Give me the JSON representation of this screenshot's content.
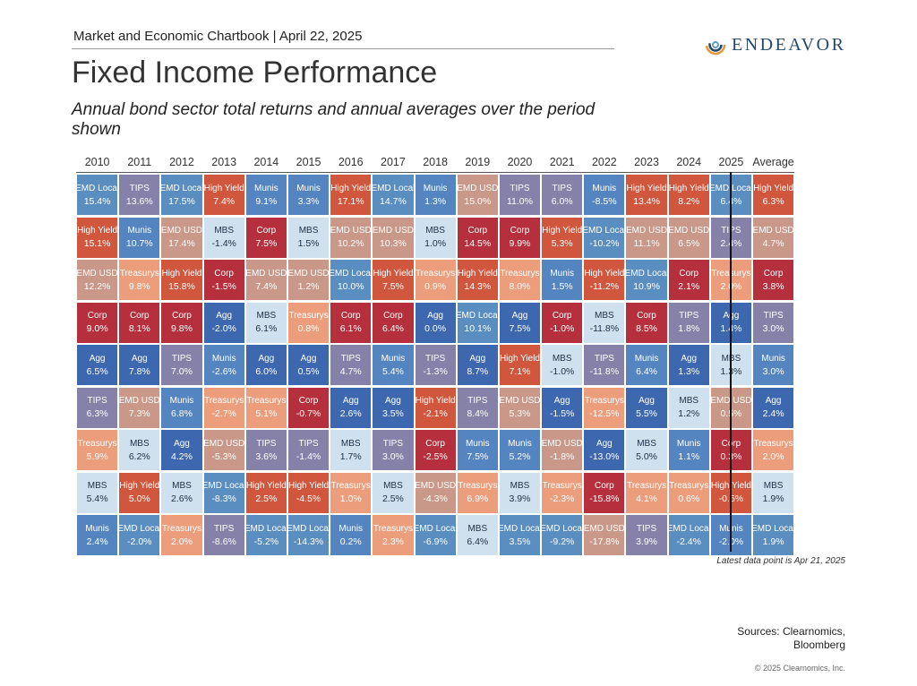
{
  "header": {
    "chartbook": "Market and Economic Chartbook | April 22, 2025",
    "logo_text": "ENDEAVOR",
    "logo_icon": "swirl-icon"
  },
  "title": "Fixed Income Performance",
  "subtitle": "Annual bond sector total returns and annual averages over the period shown",
  "footer": {
    "note": "Latest data point is Apr 21, 2025",
    "sources_line1": "Sources: Clearnomics,",
    "sources_line2": "Bloomberg",
    "copyright": "© 2025 Clearnomics, Inc."
  },
  "sector_colors": {
    "EMD Local": "#5a8ec0",
    "TIPS": "#8581a8",
    "High Yield": "#d0573e",
    "Munis": "#5585c0",
    "Corp": "#b5303c",
    "Agg": "#3d68b0",
    "EMD USD": "#c99888",
    "MBS": "#cfe0ef",
    "Treasurys": "#ec9e7c"
  },
  "chart_data": {
    "type": "table",
    "title": "Fixed Income Performance",
    "columns": [
      "2010",
      "2011",
      "2012",
      "2013",
      "2014",
      "2015",
      "2016",
      "2017",
      "2018",
      "2019",
      "2020",
      "2021",
      "2022",
      "2023",
      "2024",
      "2025",
      "Average"
    ],
    "columns_sectors": [
      [
        "EMD Local",
        "High Yield",
        "EMD USD",
        "Corp",
        "Agg",
        "TIPS",
        "Treasurys",
        "MBS",
        "Munis"
      ],
      [
        "TIPS",
        "Munis",
        "Treasurys",
        "Corp",
        "Agg",
        "EMD USD",
        "MBS",
        "High Yield",
        "EMD Local"
      ],
      [
        "EMD Local",
        "EMD USD",
        "High Yield",
        "Corp",
        "TIPS",
        "Munis",
        "Agg",
        "MBS",
        "Treasurys"
      ],
      [
        "High Yield",
        "MBS",
        "Corp",
        "Agg",
        "Munis",
        "Treasurys",
        "EMD USD",
        "EMD Local",
        "TIPS"
      ],
      [
        "Munis",
        "Corp",
        "EMD USD",
        "MBS",
        "Agg",
        "Treasurys",
        "TIPS",
        "High Yield",
        "EMD Local"
      ],
      [
        "Munis",
        "MBS",
        "EMD USD",
        "Treasurys",
        "Agg",
        "Corp",
        "TIPS",
        "High Yield",
        "EMD Local"
      ],
      [
        "High Yield",
        "EMD USD",
        "EMD Local",
        "Corp",
        "TIPS",
        "Agg",
        "MBS",
        "Treasurys",
        "Munis"
      ],
      [
        "EMD Local",
        "EMD USD",
        "High Yield",
        "Corp",
        "Munis",
        "Agg",
        "TIPS",
        "MBS",
        "Treasurys"
      ],
      [
        "Munis",
        "MBS",
        "Treasurys",
        "Agg",
        "TIPS",
        "High Yield",
        "Corp",
        "EMD USD",
        "EMD Local"
      ],
      [
        "EMD USD",
        "Corp",
        "High Yield",
        "EMD Local",
        "Agg",
        "TIPS",
        "Munis",
        "Treasurys",
        "MBS"
      ],
      [
        "TIPS",
        "Corp",
        "Treasurys",
        "Agg",
        "High Yield",
        "EMD USD",
        "Munis",
        "MBS",
        "EMD Local"
      ],
      [
        "TIPS",
        "High Yield",
        "Munis",
        "Corp",
        "MBS",
        "Agg",
        "EMD USD",
        "Treasurys",
        "EMD Local"
      ],
      [
        "Munis",
        "EMD Local",
        "High Yield",
        "MBS",
        "TIPS",
        "Treasurys",
        "Agg",
        "Corp",
        "EMD USD"
      ],
      [
        "High Yield",
        "EMD USD",
        "EMD Local",
        "Corp",
        "Munis",
        "Agg",
        "MBS",
        "Treasurys",
        "TIPS"
      ],
      [
        "High Yield",
        "EMD USD",
        "Corp",
        "TIPS",
        "Agg",
        "MBS",
        "Munis",
        "Treasurys",
        "EMD Local"
      ],
      [
        "EMD Local",
        "TIPS",
        "Treasurys",
        "Agg",
        "MBS",
        "EMD USD",
        "Corp",
        "High Yield",
        "Munis"
      ],
      [
        "High Yield",
        "EMD USD",
        "Corp",
        "TIPS",
        "Munis",
        "Agg",
        "Treasurys",
        "MBS",
        "EMD Local"
      ]
    ],
    "columns_values": [
      [
        "15.4%",
        "15.1%",
        "12.2%",
        "9.0%",
        "6.5%",
        "6.3%",
        "5.9%",
        "5.4%",
        "2.4%"
      ],
      [
        "13.6%",
        "10.7%",
        "9.8%",
        "8.1%",
        "7.8%",
        "7.3%",
        "6.2%",
        "5.0%",
        "-2.0%"
      ],
      [
        "17.5%",
        "17.4%",
        "15.8%",
        "9.8%",
        "7.0%",
        "6.8%",
        "4.2%",
        "2.6%",
        "2.0%"
      ],
      [
        "7.4%",
        "-1.4%",
        "-1.5%",
        "-2.0%",
        "-2.6%",
        "-2.7%",
        "-5.3%",
        "-8.3%",
        "-8.6%"
      ],
      [
        "9.1%",
        "7.5%",
        "7.4%",
        "6.1%",
        "6.0%",
        "5.1%",
        "3.6%",
        "2.5%",
        "-5.2%"
      ],
      [
        "3.3%",
        "1.5%",
        "1.2%",
        "0.8%",
        "0.5%",
        "-0.7%",
        "-1.4%",
        "-4.5%",
        "-14.3%"
      ],
      [
        "17.1%",
        "10.2%",
        "10.0%",
        "6.1%",
        "4.7%",
        "2.6%",
        "1.7%",
        "1.0%",
        "0.2%"
      ],
      [
        "14.7%",
        "10.3%",
        "7.5%",
        "6.4%",
        "5.4%",
        "3.5%",
        "3.0%",
        "2.5%",
        "2.3%"
      ],
      [
        "1.3%",
        "1.0%",
        "0.9%",
        "0.0%",
        "-1.3%",
        "-2.1%",
        "-2.5%",
        "-4.3%",
        "-6.9%"
      ],
      [
        "15.0%",
        "14.5%",
        "14.3%",
        "10.1%",
        "8.7%",
        "8.4%",
        "7.5%",
        "6.9%",
        "6.4%"
      ],
      [
        "11.0%",
        "9.9%",
        "8.0%",
        "7.5%",
        "7.1%",
        "5.3%",
        "5.2%",
        "3.9%",
        "3.5%"
      ],
      [
        "6.0%",
        "5.3%",
        "1.5%",
        "-1.0%",
        "-1.0%",
        "-1.5%",
        "-1.8%",
        "-2.3%",
        "-9.2%"
      ],
      [
        "-8.5%",
        "-10.2%",
        "-11.2%",
        "-11.8%",
        "-11.8%",
        "-12.5%",
        "-13.0%",
        "-15.8%",
        "-17.8%"
      ],
      [
        "13.4%",
        "11.1%",
        "10.9%",
        "8.5%",
        "6.4%",
        "5.5%",
        "5.0%",
        "4.1%",
        "3.9%"
      ],
      [
        "8.2%",
        "6.5%",
        "2.1%",
        "1.8%",
        "1.3%",
        "1.2%",
        "1.1%",
        "0.6%",
        "-2.4%"
      ],
      [
        "6.4%",
        "2.4%",
        "2.0%",
        "1.4%",
        "1.3%",
        "0.5%",
        "0.3%",
        "-0.5%",
        "-2.0%"
      ],
      [
        "6.3%",
        "4.7%",
        "3.8%",
        "3.0%",
        "3.0%",
        "2.4%",
        "2.0%",
        "1.9%",
        "1.9%"
      ]
    ]
  }
}
